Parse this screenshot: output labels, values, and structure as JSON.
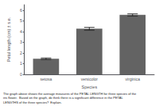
{
  "chart_data": {
    "type": "bar",
    "categories": [
      "setosa",
      "versicolor",
      "virginica"
    ],
    "values": [
      1.462,
      4.26,
      5.552
    ],
    "errors": [
      0.068,
      0.13,
      0.0955
    ],
    "color": "#636363",
    "xlabel": "Species",
    "ylabel": "Petal length (cm) ± s.e.",
    "ylim": [
      0,
      6.5
    ],
    "yticks": [
      0,
      1,
      2,
      3,
      4,
      5,
      6
    ],
    "grid": false,
    "caption": "The graph above shows the average measures of the PETAL LENGTH for three species of the\niris flower.  Based on the graph, do think there is a significant difference in the PETAL\nLENGTHS of the three species?  Explain."
  }
}
